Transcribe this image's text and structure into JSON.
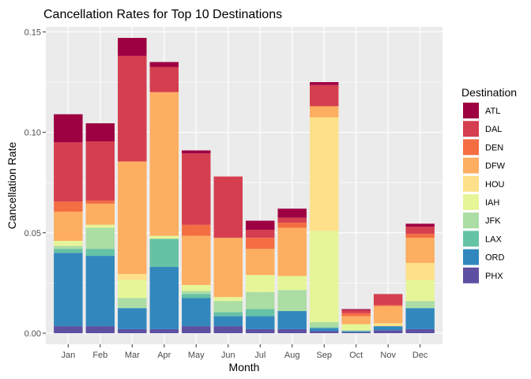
{
  "chart_data": {
    "type": "bar",
    "stacked": true,
    "title": "Cancellation Rates for Top 10 Destinations",
    "xlabel": "Month",
    "ylabel": "Cancellation Rate",
    "ylim": [
      -0.0055,
      0.1525
    ],
    "yticks": [
      0.0,
      0.05,
      0.1,
      0.15
    ],
    "ytick_labels": [
      "0.00",
      "0.05",
      "0.10",
      "0.15"
    ],
    "grid": true,
    "legend_position": "right",
    "legend_title": "Destination",
    "categories": [
      "Jan",
      "Feb",
      "Mar",
      "Apr",
      "May",
      "Jun",
      "Jul",
      "Aug",
      "Sep",
      "Oct",
      "Nov",
      "Dec"
    ],
    "series": [
      {
        "name": "PHX",
        "color": "#5E4FA2",
        "values": [
          0.0035,
          0.0035,
          0.002,
          0.002,
          0.0035,
          0.0035,
          0.002,
          0.002,
          0.001,
          0.0005,
          0.0015,
          0.002
        ]
      },
      {
        "name": "ORD",
        "color": "#3288BD",
        "values": [
          0.0365,
          0.035,
          0.0105,
          0.031,
          0.014,
          0.005,
          0.0065,
          0.009,
          0.0015,
          0.0005,
          0.002,
          0.0105
        ]
      },
      {
        "name": "LAX",
        "color": "#66C2A5",
        "values": [
          0.002,
          0.0035,
          0.0,
          0.014,
          0.002,
          0.002,
          0.0035,
          0.0,
          0.0005,
          0.0,
          0.0,
          0.0
        ]
      },
      {
        "name": "JFK",
        "color": "#ABDDA4",
        "values": [
          0.0015,
          0.0105,
          0.005,
          0.0,
          0.0015,
          0.0055,
          0.0085,
          0.0105,
          0.0025,
          0.0005,
          0.0,
          0.0035
        ]
      },
      {
        "name": "IAH",
        "color": "#E6F598",
        "values": [
          0.0025,
          0.0015,
          0.009,
          0.0015,
          0.003,
          0.002,
          0.0085,
          0.007,
          0.0455,
          0.003,
          0.0,
          0.0105
        ]
      },
      {
        "name": "HOU",
        "color": "#FEE08B",
        "values": [
          0.0,
          0.0,
          0.003,
          0.0,
          0.0,
          0.0,
          0.0,
          0.0,
          0.0565,
          0.0,
          0.0015,
          0.0085
        ]
      },
      {
        "name": "DFW",
        "color": "#FDAE61",
        "values": [
          0.0145,
          0.0105,
          0.056,
          0.0715,
          0.0245,
          0.0295,
          0.013,
          0.024,
          0.0055,
          0.004,
          0.0085,
          0.0125
        ]
      },
      {
        "name": "DEN",
        "color": "#F46D43",
        "values": [
          0.005,
          0.0015,
          0.0,
          0.0,
          0.0055,
          0.0,
          0.0055,
          0.0025,
          0.0,
          0.0015,
          0.0005,
          0.002
        ]
      },
      {
        "name": "DAL",
        "color": "#D53E4F",
        "values": [
          0.0295,
          0.0295,
          0.0525,
          0.0125,
          0.0355,
          0.0305,
          0.004,
          0.0025,
          0.0105,
          0.0015,
          0.0055,
          0.0035
        ]
      },
      {
        "name": "ATL",
        "color": "#9E0142",
        "values": [
          0.014,
          0.009,
          0.009,
          0.0025,
          0.0015,
          0.0,
          0.0045,
          0.0045,
          0.0015,
          0.0005,
          0.0,
          0.0015
        ]
      }
    ]
  }
}
